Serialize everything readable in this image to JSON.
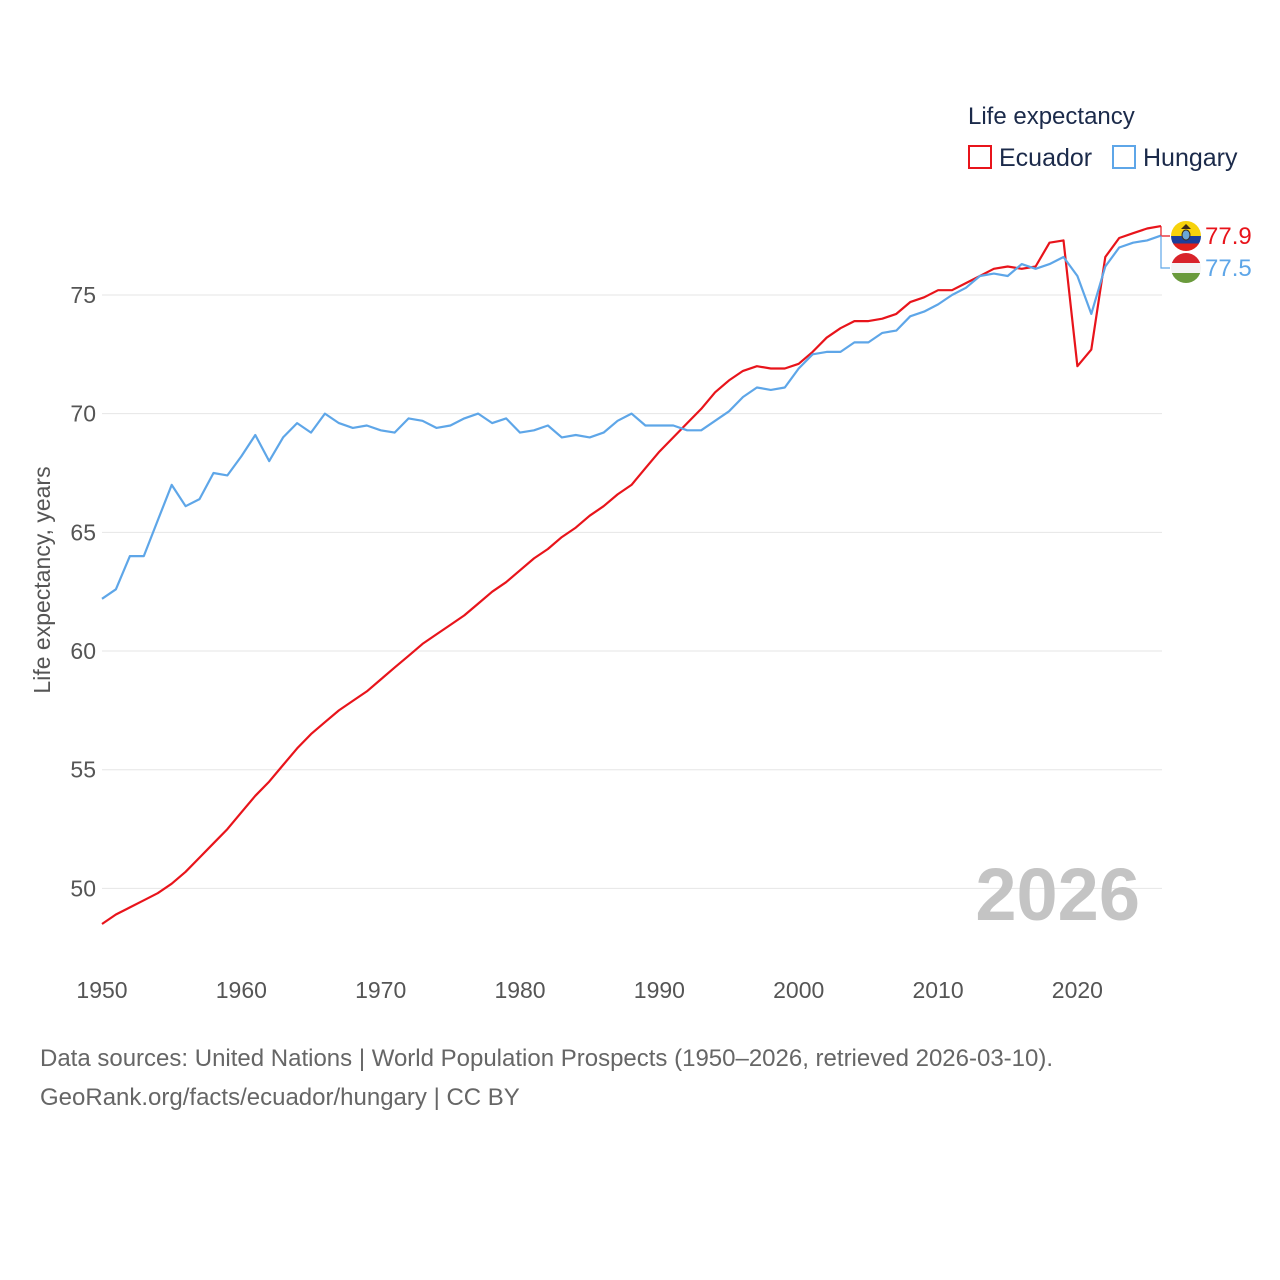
{
  "chart_data": {
    "type": "line",
    "title": "",
    "legend_title": "Life expectancy",
    "legend_position": "top-right",
    "ylabel": "Life expectancy, years",
    "xlabel": "",
    "xlim": [
      1950,
      2026
    ],
    "ylim": [
      46.9,
      79.0
    ],
    "x_ticks": [
      1950,
      1960,
      1970,
      1980,
      1990,
      2000,
      2010,
      2020
    ],
    "y_ticks": [
      50,
      55,
      60,
      65,
      70,
      75
    ],
    "year_watermark": "2026",
    "grid": true,
    "x": [
      1950,
      1951,
      1952,
      1953,
      1954,
      1955,
      1956,
      1957,
      1958,
      1959,
      1960,
      1961,
      1962,
      1963,
      1964,
      1965,
      1966,
      1967,
      1968,
      1969,
      1970,
      1971,
      1972,
      1973,
      1974,
      1975,
      1976,
      1977,
      1978,
      1979,
      1980,
      1981,
      1982,
      1983,
      1984,
      1985,
      1986,
      1987,
      1988,
      1989,
      1990,
      1991,
      1992,
      1993,
      1994,
      1995,
      1996,
      1997,
      1998,
      1999,
      2000,
      2001,
      2002,
      2003,
      2004,
      2005,
      2006,
      2007,
      2008,
      2009,
      2010,
      2011,
      2012,
      2013,
      2014,
      2015,
      2016,
      2017,
      2018,
      2019,
      2020,
      2021,
      2022,
      2023,
      2024,
      2025,
      2026
    ],
    "series": [
      {
        "name": "Ecuador",
        "color": "#e8141b",
        "end_label": "77.9",
        "flag_icon": "ecuador-flag-icon",
        "values": [
          48.5,
          48.9,
          49.2,
          49.5,
          49.8,
          50.2,
          50.7,
          51.3,
          51.9,
          52.5,
          53.2,
          53.9,
          54.5,
          55.2,
          55.9,
          56.5,
          57.0,
          57.5,
          57.9,
          58.3,
          58.8,
          59.3,
          59.8,
          60.3,
          60.7,
          61.1,
          61.5,
          62.0,
          62.5,
          62.9,
          63.4,
          63.9,
          64.3,
          64.8,
          65.2,
          65.7,
          66.1,
          66.6,
          67.0,
          67.7,
          68.4,
          69.0,
          69.6,
          70.2,
          70.9,
          71.4,
          71.8,
          72.0,
          71.9,
          71.9,
          72.1,
          72.6,
          73.2,
          73.6,
          73.9,
          73.9,
          74.0,
          74.2,
          74.7,
          74.9,
          75.2,
          75.2,
          75.5,
          75.8,
          76.1,
          76.2,
          76.1,
          76.2,
          77.2,
          77.3,
          72.0,
          72.7,
          76.6,
          77.4,
          77.6,
          77.8,
          77.9
        ]
      },
      {
        "name": "Hungary",
        "color": "#5ea6e8",
        "end_label": "77.5",
        "flag_icon": "hungary-flag-icon",
        "values": [
          62.2,
          62.6,
          64.0,
          64.0,
          65.5,
          67.0,
          66.1,
          66.4,
          67.5,
          67.4,
          68.2,
          69.1,
          68.0,
          69.0,
          69.6,
          69.2,
          70.0,
          69.6,
          69.4,
          69.5,
          69.3,
          69.2,
          69.8,
          69.7,
          69.4,
          69.5,
          69.8,
          70.0,
          69.6,
          69.8,
          69.2,
          69.3,
          69.5,
          69.0,
          69.1,
          69.0,
          69.2,
          69.7,
          70.0,
          69.5,
          69.5,
          69.5,
          69.3,
          69.3,
          69.7,
          70.1,
          70.7,
          71.1,
          71.0,
          71.1,
          71.9,
          72.5,
          72.6,
          72.6,
          73.0,
          73.0,
          73.4,
          73.5,
          74.1,
          74.3,
          74.6,
          75.0,
          75.3,
          75.8,
          75.9,
          75.8,
          76.3,
          76.1,
          76.3,
          76.6,
          75.8,
          74.2,
          76.2,
          77.0,
          77.2,
          77.3,
          77.5
        ]
      }
    ]
  },
  "footer": {
    "line1": "Data sources: United Nations | World Population Prospects (1950–2026, retrieved 2026-03-10).",
    "line2": "GeoRank.org/facts/ecuador/hungary | CC BY"
  }
}
